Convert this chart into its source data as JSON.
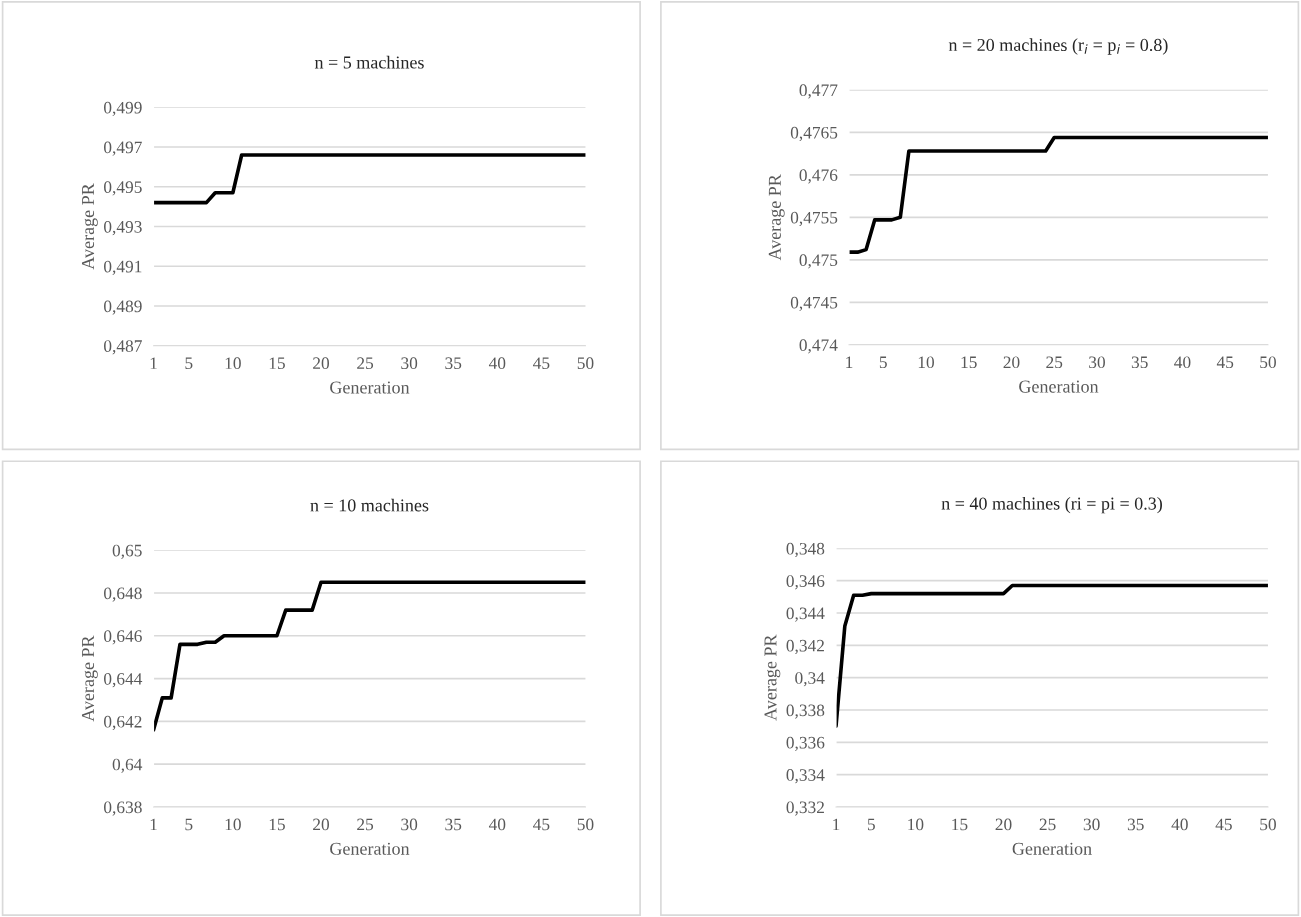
{
  "chart_data": [
    {
      "type": "line",
      "title": "n = 5 machines",
      "xlabel": "Generation",
      "ylabel": "Average PR",
      "x": [
        1,
        2,
        3,
        4,
        5,
        6,
        7,
        8,
        9,
        10,
        11,
        12,
        13,
        14,
        15,
        16,
        17,
        18,
        19,
        20,
        21,
        22,
        23,
        24,
        25,
        26,
        27,
        28,
        29,
        30,
        31,
        32,
        33,
        34,
        35,
        36,
        37,
        38,
        39,
        40,
        41,
        42,
        43,
        44,
        45,
        46,
        47,
        48,
        49,
        50
      ],
      "series": [
        {
          "color": "#000000",
          "values": [
            0.4942,
            0.4942,
            0.4942,
            0.4942,
            0.4942,
            0.4942,
            0.4942,
            0.4947,
            0.4947,
            0.4947,
            0.4966,
            0.4966,
            0.4966,
            0.4966,
            0.4966,
            0.4966,
            0.4966,
            0.4966,
            0.4966,
            0.4966,
            0.4966,
            0.4966,
            0.4966,
            0.4966,
            0.4966,
            0.4966,
            0.4966,
            0.4966,
            0.4966,
            0.4966,
            0.4966,
            0.4966,
            0.4966,
            0.4966,
            0.4966,
            0.4966,
            0.4966,
            0.4966,
            0.4966,
            0.4966,
            0.4966,
            0.4966,
            0.4966,
            0.4966,
            0.4966,
            0.4966,
            0.4966,
            0.4966,
            0.4966,
            0.4966
          ]
        }
      ],
      "xlim": [
        1,
        50
      ],
      "xticks": [
        1,
        5,
        10,
        15,
        20,
        25,
        30,
        35,
        40,
        45,
        50
      ],
      "ylim": [
        0.487,
        0.499
      ],
      "yticks": [
        {
          "value": 0.487,
          "label": "0,487"
        },
        {
          "value": 0.489,
          "label": "0,489"
        },
        {
          "value": 0.491,
          "label": "0,491"
        },
        {
          "value": 0.493,
          "label": "0,493"
        },
        {
          "value": 0.495,
          "label": "0,495"
        },
        {
          "value": 0.497,
          "label": "0,497"
        },
        {
          "value": 0.499,
          "label": "0,499"
        }
      ],
      "grid": "y",
      "marker": "none",
      "line_style": "solid",
      "legend": false
    },
    {
      "type": "line",
      "title": "n = 20 machines (r$_{i}$ = p$_{i}$ = 0.8)",
      "xlabel": "Generation",
      "ylabel": "Average PR",
      "x": [
        1,
        2,
        3,
        4,
        5,
        6,
        7,
        8,
        9,
        10,
        11,
        12,
        13,
        14,
        15,
        16,
        17,
        18,
        19,
        20,
        21,
        22,
        23,
        24,
        25,
        26,
        27,
        28,
        29,
        30,
        31,
        32,
        33,
        34,
        35,
        36,
        37,
        38,
        39,
        40,
        41,
        42,
        43,
        44,
        45,
        46,
        47,
        48,
        49,
        50
      ],
      "series": [
        {
          "color": "#000000",
          "values": [
            0.47509,
            0.47509,
            0.47512,
            0.47547,
            0.47547,
            0.47547,
            0.4755,
            0.47628,
            0.47628,
            0.47628,
            0.47628,
            0.47628,
            0.47628,
            0.47628,
            0.47628,
            0.47628,
            0.47628,
            0.47628,
            0.47628,
            0.47628,
            0.47628,
            0.47628,
            0.47628,
            0.47628,
            0.47644,
            0.47644,
            0.47644,
            0.47644,
            0.47644,
            0.47644,
            0.47644,
            0.47644,
            0.47644,
            0.47644,
            0.47644,
            0.47644,
            0.47644,
            0.47644,
            0.47644,
            0.47644,
            0.47644,
            0.47644,
            0.47644,
            0.47644,
            0.47644,
            0.47644,
            0.47644,
            0.47644,
            0.47644,
            0.47644
          ]
        }
      ],
      "xlim": [
        1,
        50
      ],
      "xticks": [
        1,
        5,
        10,
        15,
        20,
        25,
        30,
        35,
        40,
        45,
        50
      ],
      "ylim": [
        0.474,
        0.477
      ],
      "yticks": [
        {
          "value": 0.474,
          "label": "0,474"
        },
        {
          "value": 0.4745,
          "label": "0,4745"
        },
        {
          "value": 0.475,
          "label": "0,475"
        },
        {
          "value": 0.4755,
          "label": "0,4755"
        },
        {
          "value": 0.476,
          "label": "0,476"
        },
        {
          "value": 0.4765,
          "label": "0,4765"
        },
        {
          "value": 0.477,
          "label": "0,477"
        }
      ],
      "grid": "y",
      "marker": "none",
      "line_style": "solid",
      "legend": false
    },
    {
      "type": "line",
      "title": "n = 10 machines",
      "xlabel": "Generation",
      "ylabel": "Average PR",
      "x": [
        1,
        2,
        3,
        4,
        5,
        6,
        7,
        8,
        9,
        10,
        11,
        12,
        13,
        14,
        15,
        16,
        17,
        18,
        19,
        20,
        21,
        22,
        23,
        24,
        25,
        26,
        27,
        28,
        29,
        30,
        31,
        32,
        33,
        34,
        35,
        36,
        37,
        38,
        39,
        40,
        41,
        42,
        43,
        44,
        45,
        46,
        47,
        48,
        49,
        50
      ],
      "series": [
        {
          "color": "#000000",
          "values": [
            0.6416,
            0.6431,
            0.6431,
            0.6456,
            0.6456,
            0.6456,
            0.6457,
            0.6457,
            0.646,
            0.646,
            0.646,
            0.646,
            0.646,
            0.646,
            0.646,
            0.6472,
            0.6472,
            0.6472,
            0.6472,
            0.6485,
            0.6485,
            0.6485,
            0.6485,
            0.6485,
            0.6485,
            0.6485,
            0.6485,
            0.6485,
            0.6485,
            0.6485,
            0.6485,
            0.6485,
            0.6485,
            0.6485,
            0.6485,
            0.6485,
            0.6485,
            0.6485,
            0.6485,
            0.6485,
            0.6485,
            0.6485,
            0.6485,
            0.6485,
            0.6485,
            0.6485,
            0.6485,
            0.6485,
            0.6485,
            0.6485
          ]
        }
      ],
      "xlim": [
        1,
        50
      ],
      "xticks": [
        1,
        5,
        10,
        15,
        20,
        25,
        30,
        35,
        40,
        45,
        50
      ],
      "ylim": [
        0.638,
        0.65
      ],
      "yticks": [
        {
          "value": 0.638,
          "label": "0,638"
        },
        {
          "value": 0.64,
          "label": "0,64"
        },
        {
          "value": 0.642,
          "label": "0,642"
        },
        {
          "value": 0.644,
          "label": "0,644"
        },
        {
          "value": 0.646,
          "label": "0,646"
        },
        {
          "value": 0.648,
          "label": "0,648"
        },
        {
          "value": 0.65,
          "label": "0,65"
        }
      ],
      "grid": "y",
      "marker": "none",
      "line_style": "solid",
      "legend": false
    },
    {
      "type": "line",
      "title": "n = 40 machines (ri = pi = 0.3)",
      "xlabel": "Generation",
      "ylabel": "Average PR",
      "x": [
        1,
        2,
        3,
        4,
        5,
        6,
        7,
        8,
        9,
        10,
        11,
        12,
        13,
        14,
        15,
        16,
        17,
        18,
        19,
        20,
        21,
        22,
        23,
        24,
        25,
        26,
        27,
        28,
        29,
        30,
        31,
        32,
        33,
        34,
        35,
        36,
        37,
        38,
        39,
        40,
        41,
        42,
        43,
        44,
        45,
        46,
        47,
        48,
        49,
        50
      ],
      "series": [
        {
          "color": "#000000",
          "values": [
            0.337,
            0.3432,
            0.3451,
            0.3451,
            0.3452,
            0.3452,
            0.3452,
            0.3452,
            0.3452,
            0.3452,
            0.3452,
            0.3452,
            0.3452,
            0.3452,
            0.3452,
            0.3452,
            0.3452,
            0.3452,
            0.3452,
            0.3452,
            0.3457,
            0.3457,
            0.3457,
            0.3457,
            0.3457,
            0.3457,
            0.3457,
            0.3457,
            0.3457,
            0.3457,
            0.3457,
            0.3457,
            0.3457,
            0.3457,
            0.3457,
            0.3457,
            0.3457,
            0.3457,
            0.3457,
            0.3457,
            0.3457,
            0.3457,
            0.3457,
            0.3457,
            0.3457,
            0.3457,
            0.3457,
            0.3457,
            0.3457,
            0.3457
          ]
        }
      ],
      "xlim": [
        1,
        50
      ],
      "xticks": [
        1,
        5,
        10,
        15,
        20,
        25,
        30,
        35,
        40,
        45,
        50
      ],
      "ylim": [
        0.332,
        0.348
      ],
      "yticks": [
        {
          "value": 0.332,
          "label": "0,332"
        },
        {
          "value": 0.334,
          "label": "0,334"
        },
        {
          "value": 0.336,
          "label": "0,336"
        },
        {
          "value": 0.338,
          "label": "0,338"
        },
        {
          "value": 0.34,
          "label": "0,34"
        },
        {
          "value": 0.342,
          "label": "0,342"
        },
        {
          "value": 0.344,
          "label": "0,344"
        },
        {
          "value": 0.346,
          "label": "0,346"
        },
        {
          "value": 0.348,
          "label": "0,348"
        }
      ],
      "grid": "y",
      "marker": "none",
      "line_style": "solid",
      "legend": false
    }
  ]
}
